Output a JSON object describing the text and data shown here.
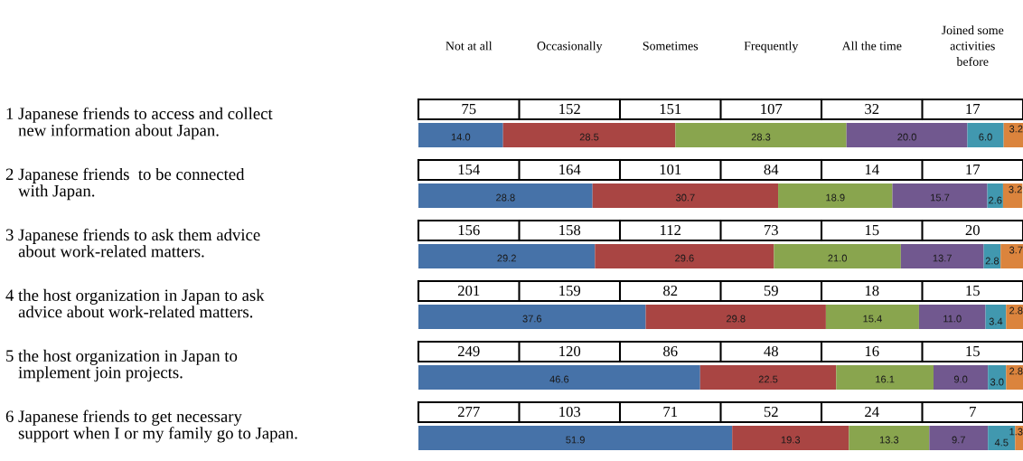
{
  "chart_data": [
    {
      "type": "other",
      "categories": [
        "Not at all",
        "Occasionally",
        "Sometimes",
        "Frequently",
        "All the time",
        "Joined some\nactivities\nbefore"
      ],
      "annotations": [
        "75",
        "152",
        "151",
        "107",
        "32",
        "17",
        "154",
        "164",
        "101",
        "84",
        "14",
        "17",
        "156",
        "158",
        "112",
        "73",
        "15",
        "20",
        "201",
        "159",
        "82",
        "59",
        "18",
        "15",
        "249",
        "120",
        "86",
        "48",
        "16",
        "15",
        "277",
        "103",
        "71",
        "52",
        "24",
        "7"
      ]
    },
    {
      "type": "bar",
      "orientation": "horizontal",
      "stacked": true,
      "categories": [
        "1 Japanese friends to access and collect\n   new information about Japan.",
        "2 Japanese friends  to be connected\n   with Japan.",
        "3 Japanese friends to ask them advice\n   about work-related matters.",
        "4 the host organization in Japan to ask\n   advice about work-related matters.",
        "5 the host organization in Japan to\n   implement join projects.",
        "6 Japanese friends to get necessary\n   support when I or my family go to Japan."
      ],
      "series": [
        {
          "color": "#4672a8",
          "values": [
            14.0,
            28.8,
            29.2,
            37.6,
            46.6,
            51.9
          ],
          "value_labels": [
            "14.0",
            "28.8",
            "29.2",
            "37.6",
            "46.6",
            "51.9"
          ]
        },
        {
          "color": "#a94543",
          "values": [
            28.5,
            30.7,
            29.6,
            29.8,
            22.5,
            19.3
          ],
          "value_labels": [
            "28.5",
            "30.7",
            "29.6",
            "29.8",
            "22.5",
            "19.3"
          ]
        },
        {
          "color": "#89a54e",
          "values": [
            28.3,
            18.9,
            21.0,
            15.4,
            16.1,
            13.3
          ],
          "value_labels": [
            "28.3",
            "18.9",
            "21.0",
            "15.4",
            "16.1",
            "13.3"
          ]
        },
        {
          "color": "#71588f",
          "values": [
            20.0,
            15.7,
            13.7,
            11.0,
            9.0,
            9.7
          ],
          "value_labels": [
            "20.0",
            "15.7",
            "13.7",
            "11.0",
            "9.0",
            "9.7"
          ]
        },
        {
          "color": "#4198af",
          "values": [
            6.0,
            2.6,
            2.8,
            3.4,
            3.0,
            4.5
          ],
          "value_labels": [
            "6.0",
            "2.6",
            "2.8",
            "3.4",
            "3.0",
            "4.5"
          ]
        },
        {
          "color": "#db843d",
          "values": [
            3.2,
            3.2,
            3.7,
            2.8,
            2.8,
            1.3
          ],
          "value_labels": [
            "3.2",
            "3.2",
            "3.7",
            "2.8",
            "2.8",
            "1.3"
          ]
        }
      ]
    }
  ]
}
